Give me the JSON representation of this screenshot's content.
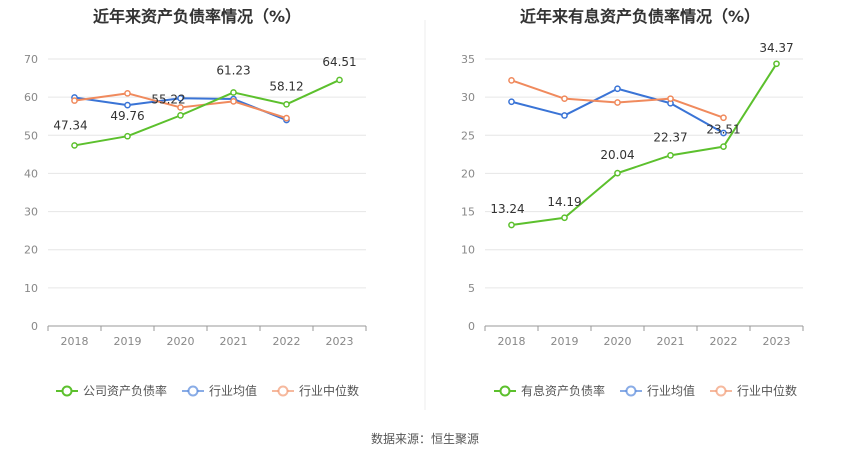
{
  "source_text": "数据来源：恒生聚源",
  "colors": {
    "company": "#5cc02d",
    "avg": "#3a74d6",
    "median": "#f08a5d"
  },
  "chart_data": [
    {
      "type": "line",
      "title": "近年来资产负债率情况（%）",
      "categories": [
        "2018",
        "2019",
        "2020",
        "2021",
        "2022",
        "2023"
      ],
      "ylim": [
        0,
        70
      ],
      "yticks": [
        0,
        10,
        20,
        30,
        40,
        50,
        60,
        70
      ],
      "grid": true,
      "legend": "bottom",
      "series": [
        {
          "name": "公司资产负债率",
          "key": "company",
          "values": [
            47.34,
            49.76,
            55.22,
            61.23,
            58.12,
            64.51
          ],
          "labels": [
            "47.34",
            "49.76",
            "55.22",
            "61.23",
            "58.12",
            "64.51"
          ]
        },
        {
          "name": "行业均值",
          "key": "avg",
          "values": [
            59.9,
            57.9,
            59.7,
            59.5,
            54.0,
            null
          ]
        },
        {
          "name": "行业中位数",
          "key": "median",
          "values": [
            59.1,
            61.0,
            57.3,
            58.9,
            54.5,
            null
          ]
        }
      ]
    },
    {
      "type": "line",
      "title": "近年来有息资产负债率情况（%）",
      "categories": [
        "2018",
        "2019",
        "2020",
        "2021",
        "2022",
        "2023"
      ],
      "ylim": [
        0,
        35
      ],
      "yticks": [
        0,
        5,
        10,
        15,
        20,
        25,
        30,
        35
      ],
      "grid": true,
      "legend": "bottom",
      "series": [
        {
          "name": "有息资产负债率",
          "key": "company",
          "values": [
            13.24,
            14.19,
            20.04,
            22.37,
            23.51,
            34.37
          ],
          "labels": [
            "13.24",
            "14.19",
            "20.04",
            "22.37",
            "23.51",
            "34.37"
          ]
        },
        {
          "name": "行业均值",
          "key": "avg",
          "values": [
            29.4,
            27.6,
            31.1,
            29.2,
            25.3,
            null
          ]
        },
        {
          "name": "行业中位数",
          "key": "median",
          "values": [
            32.2,
            29.8,
            29.3,
            29.8,
            27.3,
            null
          ]
        }
      ]
    }
  ]
}
